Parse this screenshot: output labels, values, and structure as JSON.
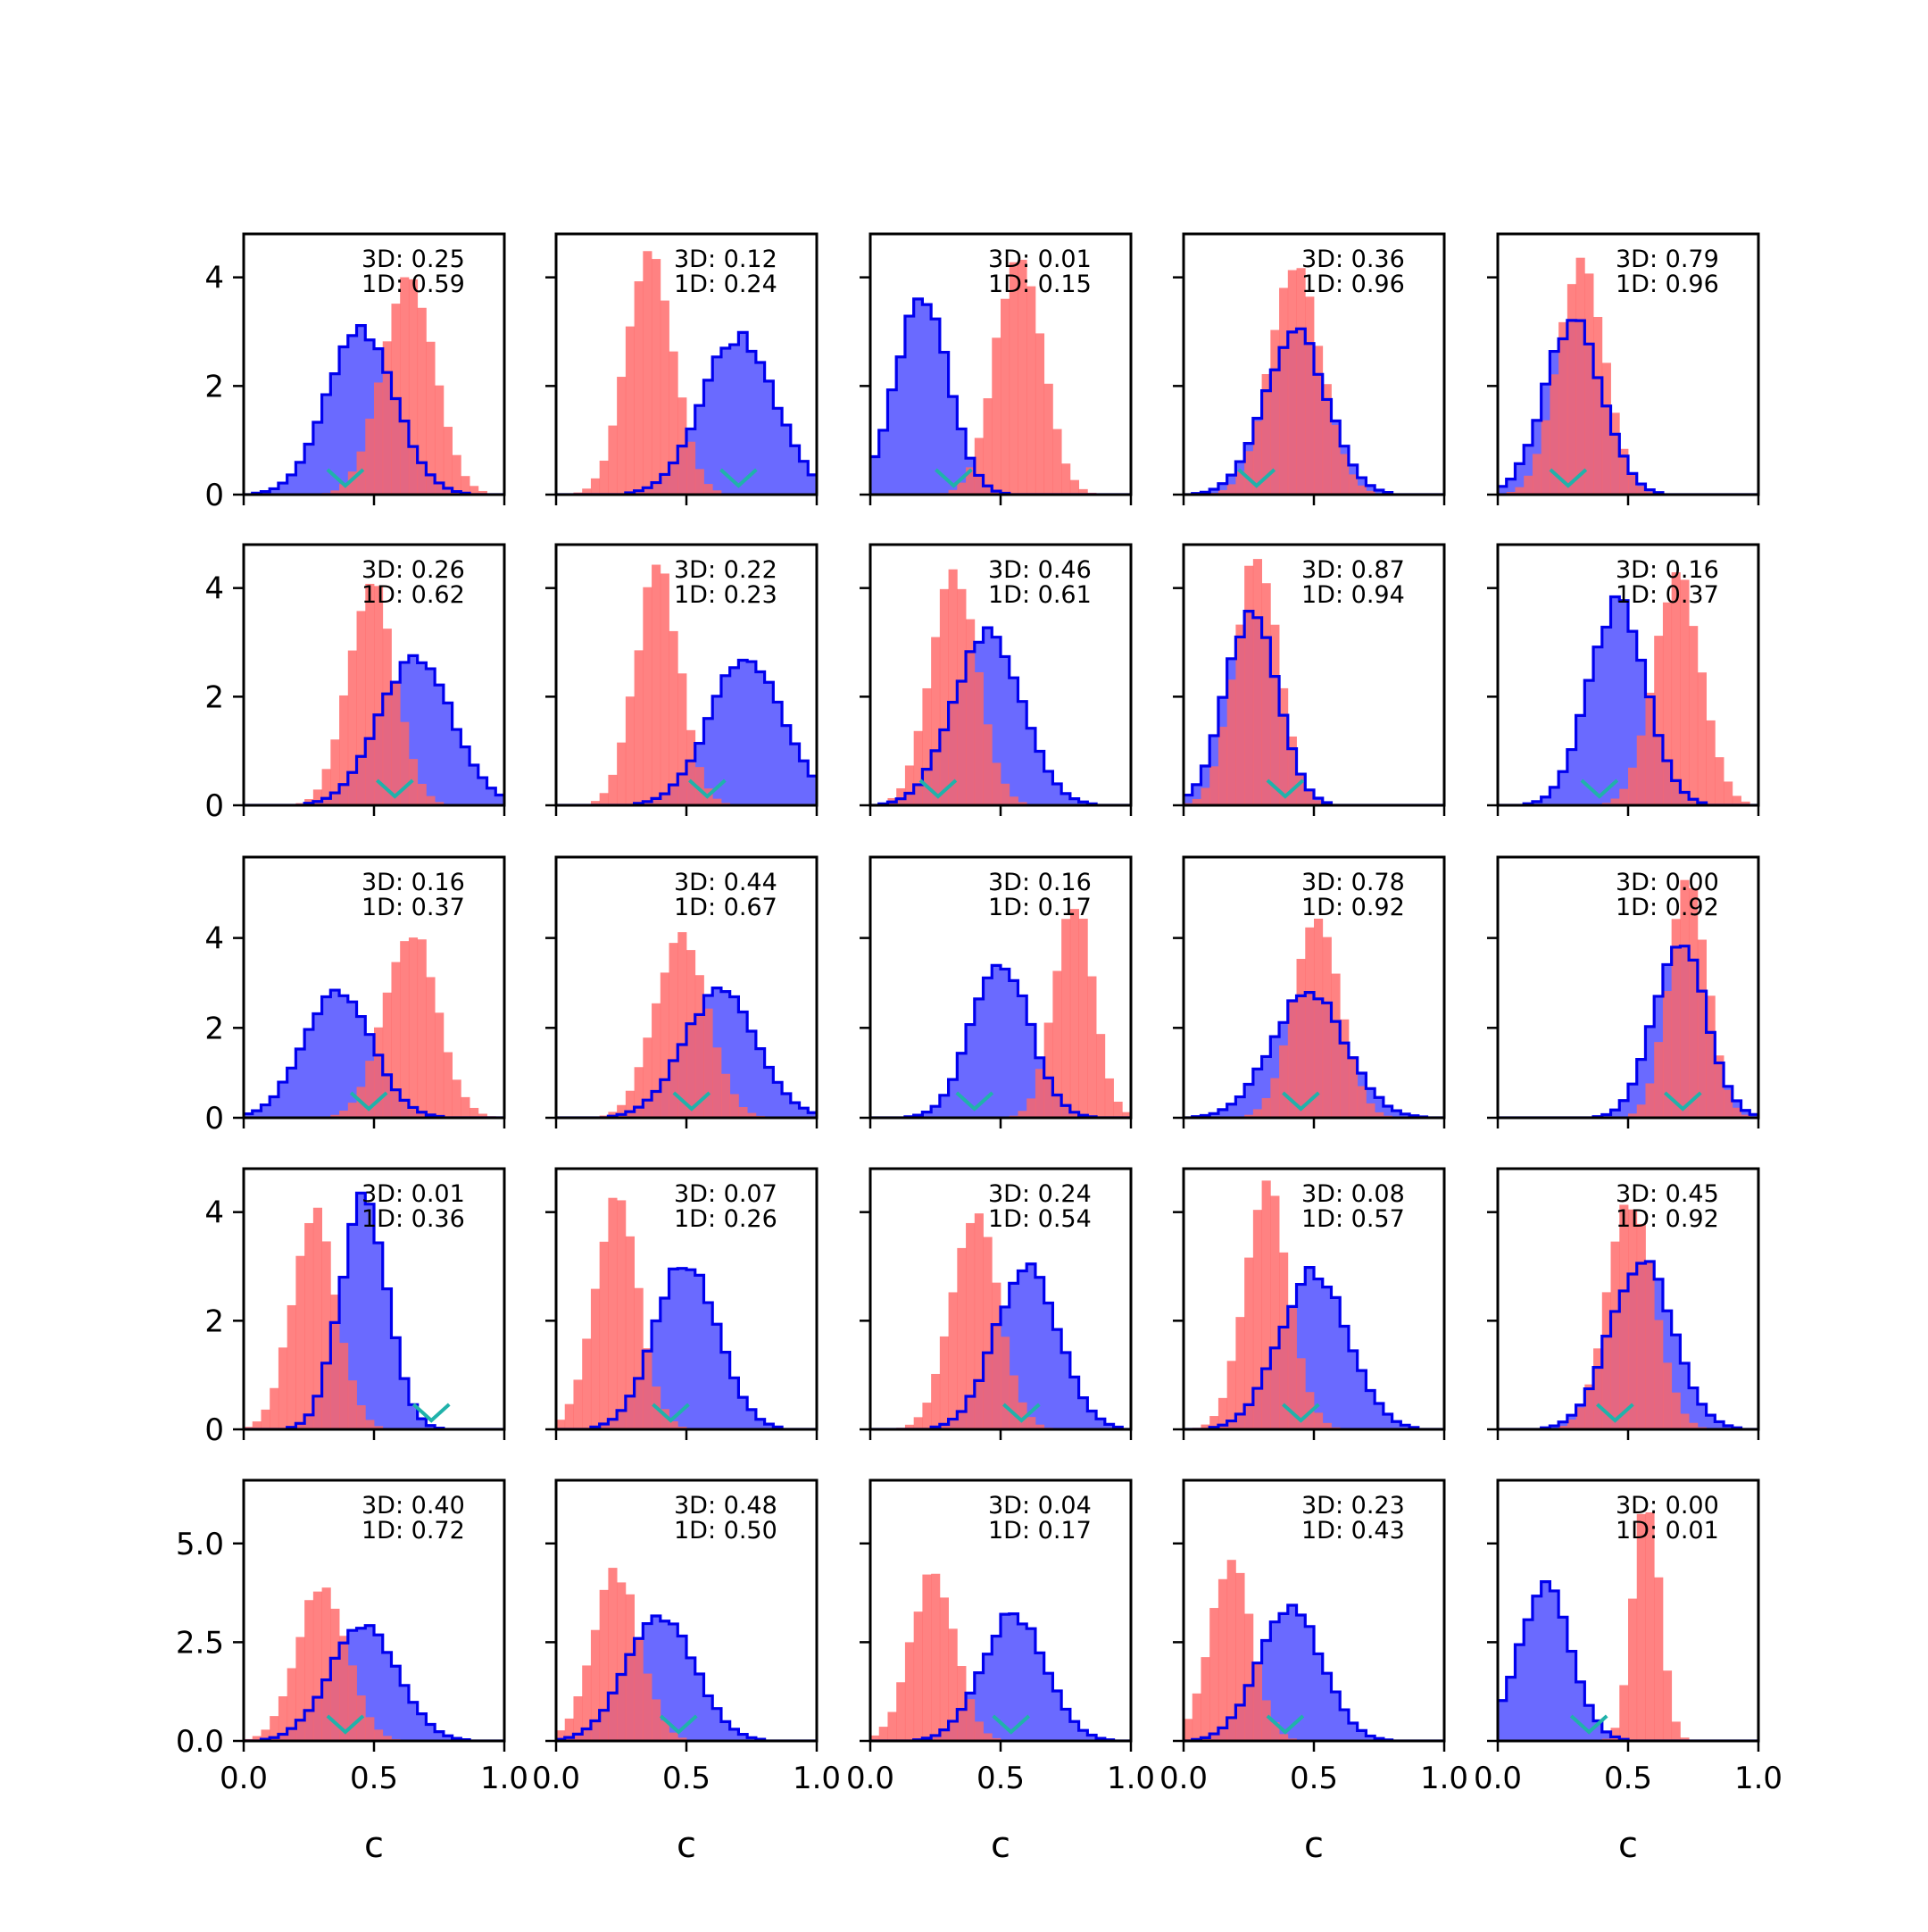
{
  "colors": {
    "prior_fill": "#ff6666",
    "prior_alpha": 0.82,
    "posterior_fill": "#6a6aff",
    "posterior_edge": "#0000ee",
    "marker": "#20b2aa",
    "frame": "#000000"
  },
  "chart_data": {
    "type": "histogram-grid",
    "rows": 5,
    "cols": 5,
    "xlabel": "c",
    "xlim": [
      0,
      1
    ],
    "xticks": [
      "0.0",
      "0.5",
      "1.0"
    ],
    "row_ylims": [
      [
        0,
        4.8
      ],
      [
        0,
        4.8
      ],
      [
        0,
        5.8
      ],
      [
        0,
        4.8
      ],
      [
        0,
        6.6
      ]
    ],
    "row_yticks": [
      [
        {
          "v": 0,
          "label": "0"
        },
        {
          "v": 2,
          "label": "2"
        },
        {
          "v": 4,
          "label": "4"
        }
      ],
      [
        {
          "v": 0,
          "label": "0"
        },
        {
          "v": 2,
          "label": "2"
        },
        {
          "v": 4,
          "label": "4"
        }
      ],
      [
        {
          "v": 0,
          "label": "0"
        },
        {
          "v": 2,
          "label": "2"
        },
        {
          "v": 4,
          "label": "4"
        }
      ],
      [
        {
          "v": 0,
          "label": "0"
        },
        {
          "v": 2,
          "label": "2"
        },
        {
          "v": 4,
          "label": "4"
        }
      ],
      [
        {
          "v": 0,
          "label": "0.0"
        },
        {
          "v": 2.5,
          "label": "2.5"
        },
        {
          "v": 5,
          "label": "5.0"
        }
      ]
    ],
    "panels": [
      {
        "row": 0,
        "col": 0,
        "annot": [
          "3D: 0.25",
          "1D: 0.59"
        ],
        "red": {
          "mu": 0.63,
          "sigma": 0.1,
          "peak": 4.0
        },
        "blue": {
          "mu": 0.45,
          "sigma": 0.13,
          "peak": 3.0
        },
        "marker": 0.39
      },
      {
        "row": 0,
        "col": 1,
        "annot": [
          "3D: 0.12",
          "1D: 0.24"
        ],
        "red": {
          "mu": 0.36,
          "sigma": 0.09,
          "peak": 4.4
        },
        "blue": {
          "mu": 0.7,
          "sigma": 0.14,
          "peak": 2.9
        },
        "marker": 0.7
      },
      {
        "row": 0,
        "col": 2,
        "annot": [
          "3D: 0.01",
          "1D: 0.15"
        ],
        "red": {
          "mu": 0.57,
          "sigma": 0.09,
          "peak": 4.4
        },
        "blue": {
          "mu": 0.2,
          "sigma": 0.1,
          "peak": 3.7
        },
        "marker": 0.32
      },
      {
        "row": 0,
        "col": 3,
        "annot": [
          "3D: 0.36",
          "1D: 0.96"
        ],
        "red": {
          "mu": 0.43,
          "sigma": 0.1,
          "peak": 4.1
        },
        "blue": {
          "mu": 0.43,
          "sigma": 0.12,
          "peak": 3.0
        },
        "marker": 0.28
      },
      {
        "row": 0,
        "col": 4,
        "annot": [
          "3D: 0.79",
          "1D: 0.96"
        ],
        "red": {
          "mu": 0.32,
          "sigma": 0.09,
          "peak": 4.3
        },
        "blue": {
          "mu": 0.29,
          "sigma": 0.11,
          "peak": 3.2
        },
        "marker": 0.27
      },
      {
        "row": 1,
        "col": 0,
        "annot": [
          "3D: 0.26",
          "1D: 0.62"
        ],
        "red": {
          "mu": 0.49,
          "sigma": 0.09,
          "peak": 4.1
        },
        "blue": {
          "mu": 0.66,
          "sigma": 0.14,
          "peak": 2.7
        },
        "marker": 0.58
      },
      {
        "row": 1,
        "col": 1,
        "annot": [
          "3D: 0.22",
          "1D: 0.23"
        ],
        "red": {
          "mu": 0.39,
          "sigma": 0.085,
          "peak": 4.3
        },
        "blue": {
          "mu": 0.73,
          "sigma": 0.14,
          "peak": 2.7
        },
        "marker": 0.58
      },
      {
        "row": 1,
        "col": 2,
        "annot": [
          "3D: 0.46",
          "1D: 0.61"
        ],
        "red": {
          "mu": 0.32,
          "sigma": 0.09,
          "peak": 4.2
        },
        "blue": {
          "mu": 0.45,
          "sigma": 0.13,
          "peak": 3.2
        },
        "marker": 0.26
      },
      {
        "row": 1,
        "col": 3,
        "annot": [
          "3D: 0.87",
          "1D: 0.94"
        ],
        "red": {
          "mu": 0.28,
          "sigma": 0.085,
          "peak": 4.5
        },
        "blue": {
          "mu": 0.26,
          "sigma": 0.1,
          "peak": 3.5
        },
        "marker": 0.39
      },
      {
        "row": 1,
        "col": 4,
        "annot": [
          "3D: 0.16",
          "1D: 0.37"
        ],
        "red": {
          "mu": 0.69,
          "sigma": 0.09,
          "peak": 4.3
        },
        "blue": {
          "mu": 0.46,
          "sigma": 0.11,
          "peak": 3.7
        },
        "marker": 0.39
      },
      {
        "row": 2,
        "col": 0,
        "annot": [
          "3D: 0.16",
          "1D: 0.37"
        ],
        "red": {
          "mu": 0.64,
          "sigma": 0.1,
          "peak": 4.2
        },
        "blue": {
          "mu": 0.36,
          "sigma": 0.13,
          "peak": 2.8
        },
        "marker": 0.48
      },
      {
        "row": 2,
        "col": 1,
        "annot": [
          "3D: 0.44",
          "1D: 0.67"
        ],
        "red": {
          "mu": 0.48,
          "sigma": 0.1,
          "peak": 4.1
        },
        "blue": {
          "mu": 0.63,
          "sigma": 0.14,
          "peak": 2.8
        },
        "marker": 0.52
      },
      {
        "row": 2,
        "col": 2,
        "annot": [
          "3D: 0.16",
          "1D: 0.17"
        ],
        "red": {
          "mu": 0.78,
          "sigma": 0.075,
          "peak": 4.8
        },
        "blue": {
          "mu": 0.5,
          "sigma": 0.11,
          "peak": 3.5
        },
        "marker": 0.4
      },
      {
        "row": 2,
        "col": 3,
        "annot": [
          "3D: 0.78",
          "1D: 0.92"
        ],
        "red": {
          "mu": 0.51,
          "sigma": 0.09,
          "peak": 4.4
        },
        "blue": {
          "mu": 0.48,
          "sigma": 0.14,
          "peak": 2.8
        },
        "marker": 0.45
      },
      {
        "row": 2,
        "col": 4,
        "annot": [
          "3D: 0.00",
          "1D: 0.92"
        ],
        "red": {
          "mu": 0.73,
          "sigma": 0.075,
          "peak": 5.2
        },
        "blue": {
          "mu": 0.7,
          "sigma": 0.1,
          "peak": 3.9
        },
        "marker": 0.71
      },
      {
        "row": 3,
        "col": 0,
        "annot": [
          "3D: 0.01",
          "1D: 0.36"
        ],
        "red": {
          "mu": 0.27,
          "sigma": 0.085,
          "peak": 4.0
        },
        "blue": {
          "mu": 0.46,
          "sigma": 0.09,
          "peak": 4.2
        },
        "marker": 0.72
      },
      {
        "row": 3,
        "col": 1,
        "annot": [
          "3D: 0.07",
          "1D: 0.26"
        ],
        "red": {
          "mu": 0.23,
          "sigma": 0.085,
          "peak": 4.2
        },
        "blue": {
          "mu": 0.5,
          "sigma": 0.12,
          "peak": 3.1
        },
        "marker": 0.44
      },
      {
        "row": 3,
        "col": 2,
        "annot": [
          "3D: 0.24",
          "1D: 0.54"
        ],
        "red": {
          "mu": 0.4,
          "sigma": 0.09,
          "peak": 4.0
        },
        "blue": {
          "mu": 0.6,
          "sigma": 0.12,
          "peak": 3.0
        },
        "marker": 0.58
      },
      {
        "row": 3,
        "col": 3,
        "annot": [
          "3D: 0.08",
          "1D: 0.57"
        ],
        "red": {
          "mu": 0.32,
          "sigma": 0.085,
          "peak": 4.4
        },
        "blue": {
          "mu": 0.5,
          "sigma": 0.13,
          "peak": 2.9
        },
        "marker": 0.45
      },
      {
        "row": 3,
        "col": 4,
        "annot": [
          "3D: 0.45",
          "1D: 0.92"
        ],
        "red": {
          "mu": 0.51,
          "sigma": 0.09,
          "peak": 4.2
        },
        "blue": {
          "mu": 0.55,
          "sigma": 0.12,
          "peak": 3.1
        },
        "marker": 0.45
      },
      {
        "row": 4,
        "col": 0,
        "annot": [
          "3D: 0.40",
          "1D: 0.72"
        ],
        "red": {
          "mu": 0.3,
          "sigma": 0.095,
          "peak": 4.0
        },
        "blue": {
          "mu": 0.46,
          "sigma": 0.13,
          "peak": 2.9
        },
        "marker": 0.39
      },
      {
        "row": 4,
        "col": 1,
        "annot": [
          "3D: 0.48",
          "1D: 0.50"
        ],
        "red": {
          "mu": 0.23,
          "sigma": 0.09,
          "peak": 4.3
        },
        "blue": {
          "mu": 0.4,
          "sigma": 0.13,
          "peak": 3.2
        },
        "marker": 0.47
      },
      {
        "row": 4,
        "col": 2,
        "annot": [
          "3D: 0.04",
          "1D: 0.17"
        ],
        "red": {
          "mu": 0.24,
          "sigma": 0.085,
          "peak": 4.2
        },
        "blue": {
          "mu": 0.55,
          "sigma": 0.12,
          "peak": 3.2
        },
        "marker": 0.54
      },
      {
        "row": 4,
        "col": 3,
        "annot": [
          "3D: 0.23",
          "1D: 0.43"
        ],
        "red": {
          "mu": 0.18,
          "sigma": 0.08,
          "peak": 4.6
        },
        "blue": {
          "mu": 0.41,
          "sigma": 0.12,
          "peak": 3.4
        },
        "marker": 0.39
      },
      {
        "row": 4,
        "col": 4,
        "annot": [
          "3D: 0.00",
          "1D: 0.01"
        ],
        "red": {
          "mu": 0.57,
          "sigma": 0.05,
          "peak": 6.2
        },
        "blue": {
          "mu": 0.18,
          "sigma": 0.1,
          "peak": 3.9
        },
        "marker": 0.35
      }
    ]
  }
}
